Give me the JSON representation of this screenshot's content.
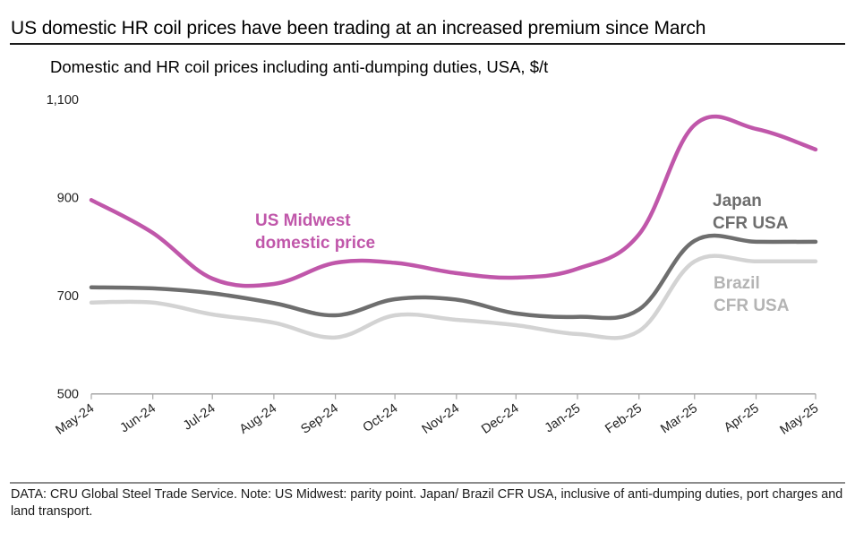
{
  "header": {
    "title": "US domestic HR coil prices have been trading at an increased premium since March",
    "subtitle": "Domestic and  HR coil prices including anti-dumping duties, USA, $/t"
  },
  "footer": {
    "note": "DATA: CRU Global Steel Trade Service. Note: US Midwest: parity point. Japan/ Brazil CFR USA, inclusive of anti-dumping duties, port charges and land transport."
  },
  "chart_data": {
    "type": "line",
    "title": "Domestic and  HR coil prices including anti-dumping duties, USA, $/t",
    "xlabel": "",
    "ylabel": "$/t",
    "ylim": [
      500,
      1100
    ],
    "yticks": [
      500,
      700,
      900,
      1100
    ],
    "ytick_labels": [
      "500",
      "700",
      "900",
      "1,100"
    ],
    "grid": false,
    "legend": "inline labels",
    "categories": [
      "May-24",
      "Jun-24",
      "Jul-24",
      "Aug-24",
      "Sep-24",
      "Oct-24",
      "Nov-24",
      "Dec-24",
      "Jan-25",
      "Feb-25",
      "Mar-25",
      "Apr-25",
      "May-25"
    ],
    "category_days": [
      0,
      31,
      61,
      92,
      123,
      153,
      184,
      214,
      245,
      276,
      304,
      335,
      365
    ],
    "series": [
      {
        "name": "US Midwest domestic price",
        "label_lines": [
          "US Midwest",
          "domestic price"
        ],
        "color": "#c057aa",
        "label_color": "#c057aa",
        "values": [
          895,
          828,
          735,
          724,
          767,
          767,
          746,
          737,
          755,
          825,
          1048,
          1040,
          998
        ]
      },
      {
        "name": "Japan CFR USA",
        "label_lines": [
          "Japan",
          "CFR USA"
        ],
        "color": "#6e6e6e",
        "label_color": "#6e6e6e",
        "values": [
          717,
          715,
          705,
          685,
          660,
          693,
          692,
          664,
          657,
          672,
          812,
          810,
          810
        ]
      },
      {
        "name": "Brazil CFR USA",
        "label_lines": [
          "Brazil",
          "CFR USA"
        ],
        "color": "#d3d3d3",
        "label_color": "#b4b4b4",
        "values": [
          686,
          686,
          662,
          645,
          615,
          660,
          651,
          640,
          622,
          628,
          770,
          770,
          770
        ]
      }
    ]
  }
}
